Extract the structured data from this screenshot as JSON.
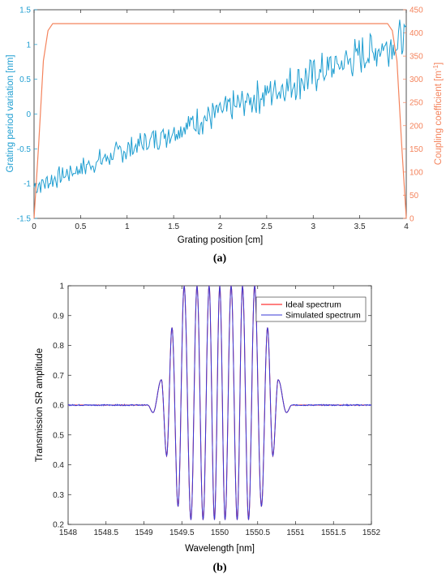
{
  "chart_data": [
    {
      "type": "line",
      "panel_label": "(a)",
      "xlabel": "Grating position [cm]",
      "ylabel_left": "Grating period variation [nm]",
      "ylabel_right": "Coupling coefficient [m",
      "ylabel_right_exp": "-1",
      "ylabel_right_close": "]",
      "xlim": [
        0,
        4
      ],
      "ylim_left": [
        -1.5,
        1.5
      ],
      "ylim_right": [
        0,
        450
      ],
      "xticks": [
        "0",
        "0.5",
        "1",
        "1.5",
        "2",
        "2.5",
        "3",
        "3.5",
        "4"
      ],
      "yticks_left": [
        "-1.5",
        "-1",
        "-0.5",
        "0",
        "0.5",
        "1",
        "1.5"
      ],
      "yticks_right": [
        "0",
        "50",
        "100",
        "150",
        "200",
        "250",
        "300",
        "350",
        "400",
        "450"
      ],
      "colors": {
        "left": "#1f9ed1",
        "right": "#f4835c"
      },
      "series": [
        {
          "axis": "left",
          "trend": {
            "x": [
              0,
              4
            ],
            "y": [
              -1.05,
              1.1
            ]
          },
          "noise_amplitude": 0.18,
          "points": 340
        },
        {
          "axis": "right",
          "x": [
            0,
            0.05,
            0.1,
            0.15,
            0.2,
            3.8,
            3.85,
            3.9,
            3.95,
            4.0
          ],
          "y": [
            0,
            160,
            340,
            405,
            420,
            420,
            405,
            340,
            160,
            0
          ]
        }
      ]
    },
    {
      "type": "line",
      "panel_label": "(b)",
      "xlabel": "Wavelength [nm]",
      "ylabel": "Transmission SR amplitude",
      "xlim": [
        1548,
        1552
      ],
      "ylim": [
        0.2,
        1.0
      ],
      "xticks": [
        "1548",
        "1548.5",
        "1549",
        "1549.5",
        "1550",
        "1550.5",
        "1551",
        "1551.5",
        "1552"
      ],
      "yticks": [
        "0.2",
        "0.3",
        "0.4",
        "0.5",
        "0.6",
        "0.7",
        "0.8",
        "0.9",
        "1"
      ],
      "legend": {
        "position": "top-right",
        "entries": [
          "Ideal spectrum",
          "Simulated spectrum"
        ]
      },
      "colors": {
        "ideal": "#ff0000",
        "simulated": "#3a3ad6"
      },
      "series": [
        {
          "name": "Ideal spectrum",
          "baseline": 0.6,
          "center": 1550.0,
          "peaks_x": [
            1549.37,
            1549.53,
            1549.7,
            1549.86,
            1550.0,
            1550.15,
            1550.3,
            1550.46,
            1550.63
          ],
          "peaks_y": [
            0.86,
            1.0,
            1.0,
            1.0,
            1.0,
            1.0,
            1.0,
            1.0,
            0.86
          ],
          "outer_peaks_x": [
            1549.23,
            1550.77
          ],
          "outer_peaks_y": [
            0.685,
            0.685
          ],
          "dips_x": [
            1549.12,
            1549.3,
            1549.45,
            1549.62,
            1549.78,
            1549.93,
            1550.07,
            1550.23,
            1550.38,
            1550.55,
            1550.7,
            1550.88
          ],
          "dips_y": [
            0.575,
            0.43,
            0.26,
            0.215,
            0.215,
            0.215,
            0.215,
            0.215,
            0.215,
            0.26,
            0.43,
            0.575
          ]
        },
        {
          "name": "Simulated spectrum",
          "baseline": 0.6
        }
      ]
    }
  ]
}
